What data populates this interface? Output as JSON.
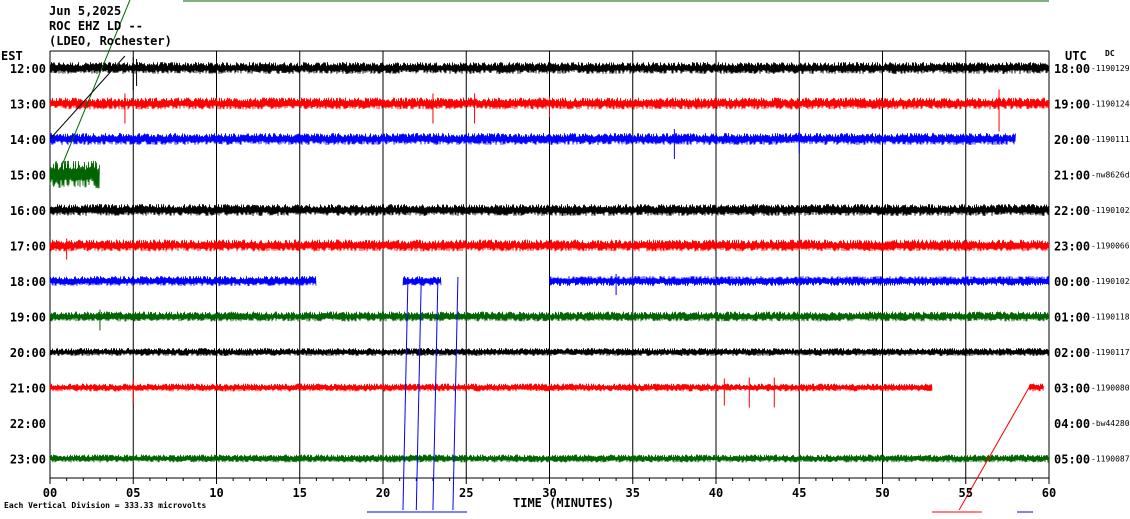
{
  "header": {
    "date": "Jun 5,2025",
    "station": "ROC EHZ LD --",
    "network": "(LDEO, Rochester)"
  },
  "left_tz": "EST",
  "right_tz": "UTC",
  "dc_label": "DC",
  "footer": "Each Vertical Division = 333.33 microvolts",
  "colors": {
    "black": "#000000",
    "red": "#ff0000",
    "blue": "#0000ff",
    "green": "#006400",
    "grid": "#000000"
  },
  "chart_data": {
    "type": "line",
    "title": "",
    "xlabel": "TIME (MINUTES)",
    "ylabel": "",
    "xlim": [
      0,
      60
    ],
    "x_ticks": [
      "00",
      "05",
      "10",
      "15",
      "20",
      "25",
      "30",
      "35",
      "40",
      "45",
      "50",
      "55",
      "60"
    ],
    "grid": true,
    "series": [
      {
        "left": "12:00",
        "right": "18:00",
        "dc": "-1190129",
        "color": "black",
        "segments": [
          [
            0,
            60
          ]
        ],
        "amp": 6,
        "spikes": [
          [
            5.0,
            22
          ],
          [
            5.2,
            18
          ]
        ]
      },
      {
        "left": "13:00",
        "right": "19:00",
        "dc": "-1190124",
        "color": "red",
        "segments": [
          [
            0,
            60
          ]
        ],
        "amp": 6,
        "spikes": [
          [
            4.5,
            20
          ],
          [
            23.0,
            20
          ],
          [
            25.5,
            20
          ],
          [
            57.0,
            28
          ],
          [
            30.0,
            14
          ]
        ]
      },
      {
        "left": "14:00",
        "right": "20:00",
        "dc": "-1190111",
        "color": "blue",
        "segments": [
          [
            0,
            58
          ]
        ],
        "amp": 6,
        "spikes": [
          [
            37.5,
            20
          ],
          [
            45.0,
            14
          ]
        ]
      },
      {
        "left": "15:00",
        "right": "21:00",
        "dc": "-nw8626d",
        "color": "green",
        "segments": [
          [
            0,
            3
          ]
        ],
        "amp": 14,
        "spikes": []
      },
      {
        "left": "16:00",
        "right": "22:00",
        "dc": "-1190102",
        "color": "black",
        "segments": [
          [
            0,
            60
          ]
        ],
        "amp": 6,
        "spikes": []
      },
      {
        "left": "17:00",
        "right": "23:00",
        "dc": "-1190066",
        "color": "red",
        "segments": [
          [
            0,
            60
          ]
        ],
        "amp": 6,
        "spikes": [
          [
            1.0,
            14
          ]
        ]
      },
      {
        "left": "18:00",
        "right": "00:00",
        "dc": "-1190102",
        "color": "blue",
        "segments": [
          [
            0,
            16
          ],
          [
            21.2,
            23.5
          ],
          [
            30.0,
            60
          ]
        ],
        "amp": 5,
        "spikes": [
          [
            34.0,
            14
          ]
        ]
      },
      {
        "left": "19:00",
        "right": "01:00",
        "dc": "-1190118",
        "color": "green",
        "segments": [
          [
            0,
            60
          ]
        ],
        "amp": 5,
        "spikes": [
          [
            3.0,
            14
          ]
        ]
      },
      {
        "left": "20:00",
        "right": "02:00",
        "dc": "-1190117",
        "color": "black",
        "segments": [
          [
            0,
            60
          ]
        ],
        "amp": 4,
        "spikes": []
      },
      {
        "left": "21:00",
        "right": "03:00",
        "dc": "-1190080",
        "color": "red",
        "segments": [
          [
            0,
            53
          ],
          [
            58.8,
            59.7
          ]
        ],
        "amp": 4,
        "spikes": [
          [
            5.0,
            16
          ],
          [
            40.5,
            18
          ],
          [
            42.0,
            20
          ],
          [
            43.5,
            20
          ]
        ]
      },
      {
        "left": "22:00",
        "right": "04:00",
        "dc": "-bw44280",
        "color": "red",
        "segments": [],
        "amp": 0,
        "spikes": []
      },
      {
        "left": "23:00",
        "right": "05:00",
        "dc": "-1190087",
        "color": "green",
        "segments": [
          [
            0,
            60
          ]
        ],
        "amp": 4,
        "spikes": []
      }
    ]
  }
}
